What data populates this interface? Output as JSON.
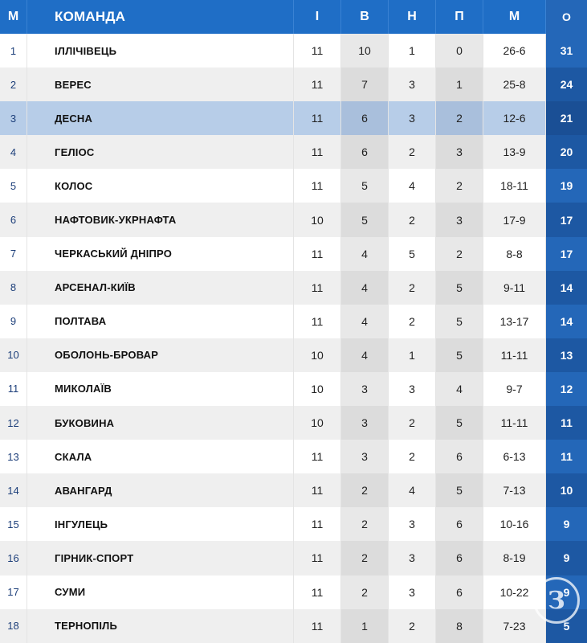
{
  "headers": {
    "pos": "М",
    "team": "КОМАНДА",
    "played": "І",
    "won": "В",
    "drawn": "Н",
    "lost": "П",
    "goals": "М",
    "points": "О"
  },
  "rows": [
    {
      "pos": "1",
      "team": "ІЛЛІЧІВЕЦЬ",
      "played": "11",
      "won": "10",
      "drawn": "1",
      "lost": "0",
      "goals": "26-6",
      "points": "31"
    },
    {
      "pos": "2",
      "team": "ВЕРЕС",
      "played": "11",
      "won": "7",
      "drawn": "3",
      "lost": "1",
      "goals": "25-8",
      "points": "24"
    },
    {
      "pos": "3",
      "team": "ДЕСНА",
      "played": "11",
      "won": "6",
      "drawn": "3",
      "lost": "2",
      "goals": "12-6",
      "points": "21"
    },
    {
      "pos": "4",
      "team": "ГЕЛІОС",
      "played": "11",
      "won": "6",
      "drawn": "2",
      "lost": "3",
      "goals": "13-9",
      "points": "20"
    },
    {
      "pos": "5",
      "team": "КОЛОС",
      "played": "11",
      "won": "5",
      "drawn": "4",
      "lost": "2",
      "goals": "18-11",
      "points": "19"
    },
    {
      "pos": "6",
      "team": "НАФТОВИК-УКРНАФТА",
      "played": "10",
      "won": "5",
      "drawn": "2",
      "lost": "3",
      "goals": "17-9",
      "points": "17"
    },
    {
      "pos": "7",
      "team": "ЧЕРКАСЬКИЙ ДНІПРО",
      "played": "11",
      "won": "4",
      "drawn": "5",
      "lost": "2",
      "goals": "8-8",
      "points": "17"
    },
    {
      "pos": "8",
      "team": "АРСЕНАЛ-КИЇВ",
      "played": "11",
      "won": "4",
      "drawn": "2",
      "lost": "5",
      "goals": "9-11",
      "points": "14"
    },
    {
      "pos": "9",
      "team": "ПОЛТАВА",
      "played": "11",
      "won": "4",
      "drawn": "2",
      "lost": "5",
      "goals": "13-17",
      "points": "14"
    },
    {
      "pos": "10",
      "team": "ОБОЛОНЬ-БРОВАР",
      "played": "10",
      "won": "4",
      "drawn": "1",
      "lost": "5",
      "goals": "11-11",
      "points": "13"
    },
    {
      "pos": "11",
      "team": "МИКОЛАЇВ",
      "played": "10",
      "won": "3",
      "drawn": "3",
      "lost": "4",
      "goals": "9-7",
      "points": "12"
    },
    {
      "pos": "12",
      "team": "БУКОВИНА",
      "played": "10",
      "won": "3",
      "drawn": "2",
      "lost": "5",
      "goals": "11-11",
      "points": "11"
    },
    {
      "pos": "13",
      "team": "СКАЛА",
      "played": "11",
      "won": "3",
      "drawn": "2",
      "lost": "6",
      "goals": "6-13",
      "points": "11"
    },
    {
      "pos": "14",
      "team": "АВАНГАРД",
      "played": "11",
      "won": "2",
      "drawn": "4",
      "lost": "5",
      "goals": "7-13",
      "points": "10"
    },
    {
      "pos": "15",
      "team": "ІНГУЛЕЦЬ",
      "played": "11",
      "won": "2",
      "drawn": "3",
      "lost": "6",
      "goals": "10-16",
      "points": "9"
    },
    {
      "pos": "16",
      "team": "ГІРНИК-СПОРТ",
      "played": "11",
      "won": "2",
      "drawn": "3",
      "lost": "6",
      "goals": "8-19",
      "points": "9"
    },
    {
      "pos": "17",
      "team": "СУМИ",
      "played": "11",
      "won": "2",
      "drawn": "3",
      "lost": "6",
      "goals": "10-22",
      "points": "9"
    },
    {
      "pos": "18",
      "team": "ТЕРНОПІЛЬ",
      "played": "11",
      "won": "1",
      "drawn": "2",
      "lost": "8",
      "goals": "7-23",
      "points": "5"
    }
  ],
  "highlighted_row": "3",
  "colors": {
    "header": "#1f6ec6",
    "points_column": "#2467b8",
    "highlight": "#b7cde8"
  }
}
